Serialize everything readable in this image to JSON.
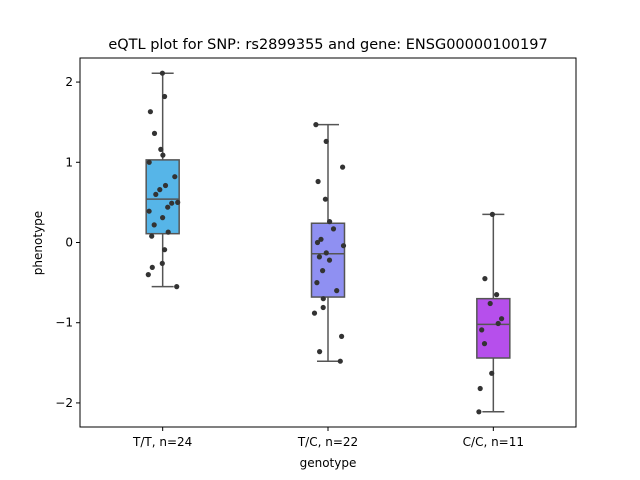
{
  "chart_data": {
    "type": "box",
    "title": "eQTL plot for SNP: rs2899355 and gene: ENSG00000100197",
    "xlabel": "genotype",
    "ylabel": "phenotype",
    "ylim": [
      -2.3,
      2.3
    ],
    "yticks": [
      -2,
      -1,
      0,
      1,
      2
    ],
    "grid": false,
    "categories": [
      "T/T, n=24",
      "T/C, n=22",
      "C/C, n=11"
    ],
    "boxes": [
      {
        "category": "T/T, n=24",
        "color": "#56b5e8",
        "whisker_low": -0.55,
        "q1": 0.11,
        "median": 0.54,
        "q3": 1.03,
        "whisker_high": 2.11,
        "points": [
          2.11,
          1.82,
          1.63,
          1.36,
          1.16,
          1.09,
          1.0,
          0.82,
          0.71,
          0.66,
          0.6,
          0.49,
          0.44,
          0.39,
          0.31,
          0.22,
          0.13,
          0.08,
          -0.09,
          -0.26,
          -0.31,
          -0.4,
          -0.55,
          0.5
        ]
      },
      {
        "category": "T/C, n=22",
        "color": "#8f90f2",
        "whisker_low": -1.48,
        "q1": -0.68,
        "median": -0.14,
        "q3": 0.24,
        "whisker_high": 1.47,
        "points": [
          1.47,
          1.26,
          0.94,
          0.76,
          0.54,
          0.26,
          0.17,
          0.04,
          0.0,
          -0.04,
          -0.13,
          -0.18,
          -0.22,
          -0.35,
          -0.5,
          -0.6,
          -0.7,
          -0.81,
          -0.88,
          -1.17,
          -1.36,
          -1.48
        ]
      },
      {
        "category": "C/C, n=11",
        "color": "#b64fec",
        "whisker_low": -2.11,
        "q1": -1.44,
        "median": -1.02,
        "q3": -0.7,
        "whisker_high": 0.35,
        "points": [
          0.35,
          -0.45,
          -0.65,
          -0.76,
          -0.95,
          -1.01,
          -1.09,
          -1.26,
          -1.63,
          -1.82,
          -2.11
        ]
      }
    ]
  }
}
